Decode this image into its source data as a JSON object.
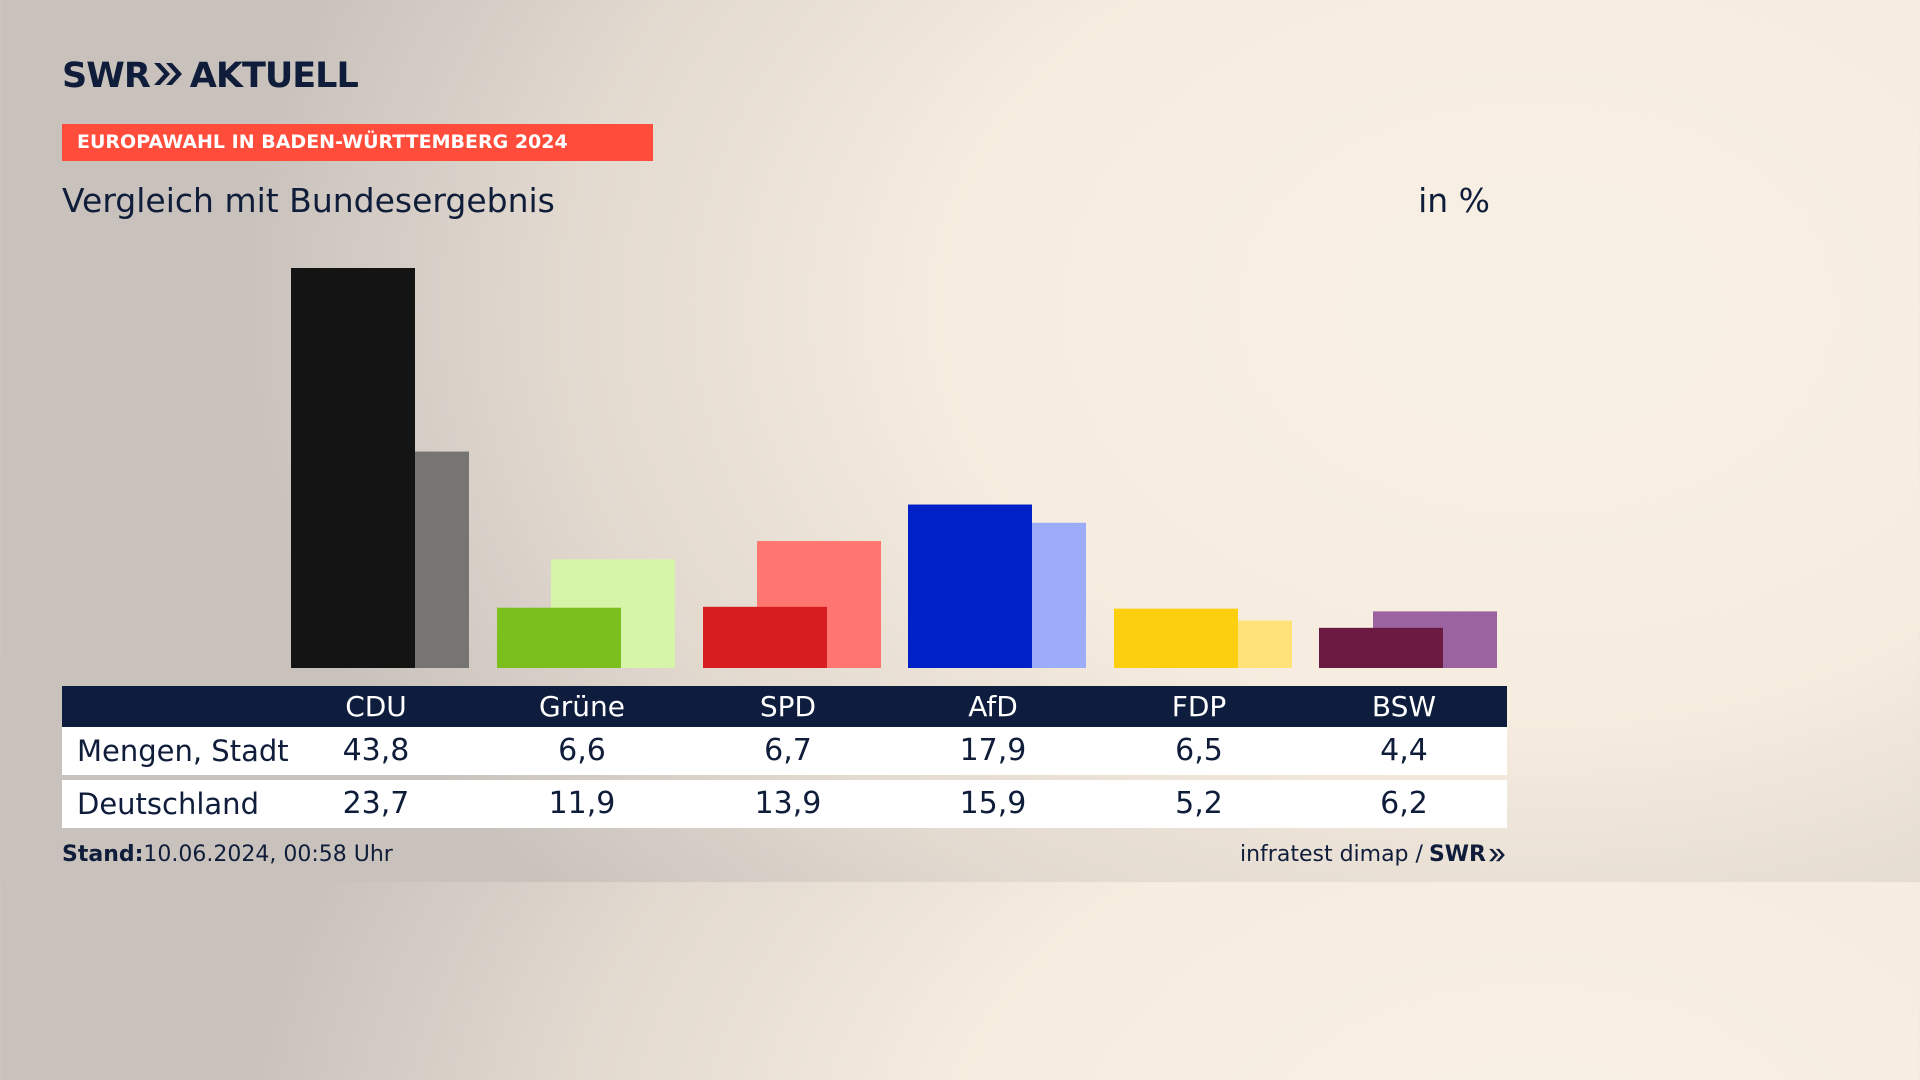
{
  "brand": {
    "name": "SWR",
    "product": "AKTUELL"
  },
  "banner": "EUROPAWAHL IN BADEN-WÜRTTEMBERG 2024",
  "subtitle": "Vergleich mit Bundesergebnis",
  "unit": "in %",
  "colors": {
    "navy": "#0e1d3d",
    "banner": "#ff4c3b",
    "CDU": [
      "#141414",
      "#777574"
    ],
    "Grüne": [
      "#7bbf1f",
      "#d6f5a9"
    ],
    "SPD": [
      "#d71d1f",
      "#ff7570"
    ],
    "AfD": [
      "#0020c8",
      "#9dabfb"
    ],
    "FDP": [
      "#fdd00f",
      "#ffe37a"
    ],
    "BSW": [
      "#6b1a42",
      "#9b64a0"
    ]
  },
  "chart_data": {
    "type": "bar",
    "categories": [
      "CDU",
      "Grüne",
      "SPD",
      "AfD",
      "FDP",
      "BSW"
    ],
    "series": [
      {
        "name": "Mengen, Stadt",
        "values": [
          43.8,
          6.6,
          6.7,
          17.9,
          6.5,
          4.4
        ]
      },
      {
        "name": "Deutschland",
        "values": [
          23.7,
          11.9,
          13.9,
          15.9,
          5.2,
          6.2
        ]
      }
    ],
    "ylim": [
      0,
      43.8
    ]
  },
  "table": {
    "columns": [
      "CDU",
      "Grüne",
      "SPD",
      "AfD",
      "FDP",
      "BSW"
    ],
    "rows": [
      {
        "label": "Mengen, Stadt",
        "values": [
          "43,8",
          "6,6",
          "6,7",
          "17,9",
          "6,5",
          "4,4"
        ]
      },
      {
        "label": "Deutschland",
        "values": [
          "23,7",
          "11,9",
          "13,9",
          "15,9",
          "5,2",
          "6,2"
        ]
      }
    ]
  },
  "footer": {
    "stand_label": "Stand:",
    "stand_value": "10.06.2024, 00:58 Uhr",
    "source": "infratest dimap /",
    "source_brand": "SWR"
  }
}
